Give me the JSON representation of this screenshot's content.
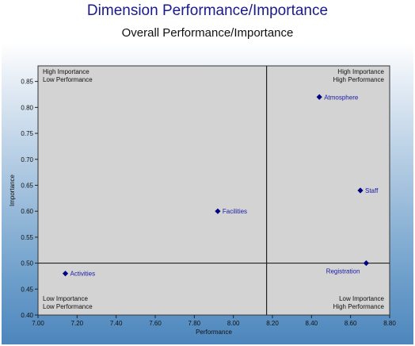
{
  "title": "Dimension Performance/Importance",
  "subtitle": "Overall Performance/Importance",
  "chart_data": {
    "type": "scatter",
    "title": "Dimension Performance/Importance",
    "subtitle": "Overall Performance/Importance",
    "xlabel": "Performance",
    "ylabel": "Importance",
    "xlim": [
      7.0,
      8.8
    ],
    "ylim": [
      0.4,
      0.88
    ],
    "x_ticks": [
      "7.00",
      "7.20",
      "7.40",
      "7.60",
      "7.80",
      "8.00",
      "8.20",
      "8.40",
      "8.60",
      "8.80"
    ],
    "y_ticks": [
      "0.40",
      "0.45",
      "0.50",
      "0.55",
      "0.60",
      "0.65",
      "0.70",
      "0.75",
      "0.80",
      "0.85"
    ],
    "x_divider": 8.17,
    "y_divider": 0.5,
    "grid": false,
    "points": [
      {
        "label": "Atmosphere",
        "x": 8.44,
        "y": 0.82,
        "label_side": "right"
      },
      {
        "label": "Staff",
        "x": 8.65,
        "y": 0.64,
        "label_side": "right"
      },
      {
        "label": "Facilities",
        "x": 7.92,
        "y": 0.6,
        "label_side": "right"
      },
      {
        "label": "Registration",
        "x": 8.68,
        "y": 0.5,
        "label_side": "below-left"
      },
      {
        "label": "Activities",
        "x": 7.14,
        "y": 0.48,
        "label_side": "right"
      }
    ],
    "quadrants": {
      "top_left": [
        "High Importance",
        "Low Performance"
      ],
      "top_right": [
        "High Importance",
        "High Performance"
      ],
      "bottom_left": [
        "Low Importance",
        "Low Performance"
      ],
      "bottom_right": [
        "Low Importance",
        "High Performance"
      ]
    },
    "colors": {
      "plot_background": "#d3d3d3",
      "marker": "#000080",
      "point_label": "#1a1aa8",
      "title": "#1a1a8e"
    }
  }
}
